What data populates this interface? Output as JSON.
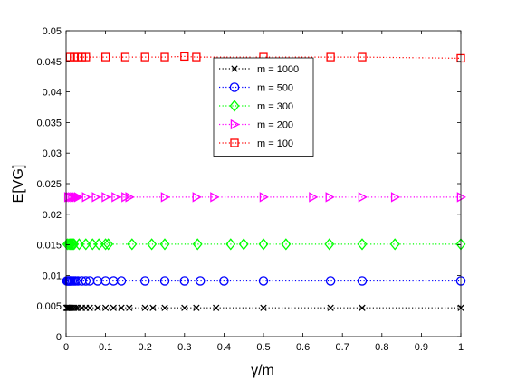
{
  "chart_data": {
    "type": "line",
    "title": "",
    "xlabel": "γ/m",
    "ylabel": "E[VG]",
    "xlim": [
      0,
      1
    ],
    "ylim": [
      0,
      0.05
    ],
    "xticks": [
      "0",
      "0.1",
      "0.2",
      "0.3",
      "0.4",
      "0.5",
      "0.6",
      "0.7",
      "0.8",
      "0.9",
      "1"
    ],
    "yticks": [
      "0",
      "0.005",
      "0.01",
      "0.015",
      "0.02",
      "0.025",
      "0.03",
      "0.035",
      "0.04",
      "0.045",
      "0.05"
    ],
    "grid": false,
    "legend_position": "top-center",
    "series": [
      {
        "name": "m = 1000",
        "color": "#000000",
        "marker": "x-mark",
        "x": [
          0.001,
          0.002,
          0.003,
          0.004,
          0.005,
          0.006,
          0.008,
          0.01,
          0.012,
          0.015,
          0.02,
          0.025,
          0.03,
          0.04,
          0.05,
          0.06,
          0.08,
          0.1,
          0.12,
          0.14,
          0.16,
          0.2,
          0.22,
          0.25,
          0.3,
          0.33,
          0.38,
          0.5,
          0.67,
          0.75,
          1.0
        ],
        "values": [
          0.0047,
          0.0047,
          0.0047,
          0.0047,
          0.0047,
          0.0047,
          0.0047,
          0.0047,
          0.0047,
          0.0047,
          0.0047,
          0.0047,
          0.0047,
          0.0047,
          0.0047,
          0.0047,
          0.0047,
          0.0047,
          0.0047,
          0.0047,
          0.0047,
          0.0047,
          0.0047,
          0.0047,
          0.0047,
          0.0047,
          0.0047,
          0.0047,
          0.0047,
          0.0047,
          0.0047
        ]
      },
      {
        "name": "m = 500",
        "color": "#0000ff",
        "marker": "circle",
        "x": [
          0.002,
          0.004,
          0.006,
          0.008,
          0.01,
          0.012,
          0.016,
          0.02,
          0.024,
          0.03,
          0.04,
          0.05,
          0.06,
          0.08,
          0.1,
          0.12,
          0.14,
          0.2,
          0.25,
          0.3,
          0.34,
          0.4,
          0.5,
          0.67,
          0.75,
          1.0
        ],
        "values": [
          0.0091,
          0.0091,
          0.0091,
          0.0091,
          0.0091,
          0.0091,
          0.0091,
          0.0091,
          0.0091,
          0.0091,
          0.0091,
          0.0091,
          0.0091,
          0.0091,
          0.0091,
          0.0091,
          0.0091,
          0.0091,
          0.0091,
          0.0091,
          0.0091,
          0.0091,
          0.0091,
          0.0091,
          0.0091,
          0.0091
        ]
      },
      {
        "name": "m = 300",
        "color": "#00ff00",
        "marker": "diamond",
        "x": [
          0.003,
          0.007,
          0.01,
          0.013,
          0.017,
          0.02,
          0.033,
          0.05,
          0.067,
          0.083,
          0.1,
          0.107,
          0.167,
          0.217,
          0.25,
          0.333,
          0.417,
          0.45,
          0.5,
          0.557,
          0.667,
          0.75,
          0.833,
          1.0
        ],
        "values": [
          0.0151,
          0.0151,
          0.0151,
          0.0151,
          0.0151,
          0.0151,
          0.0151,
          0.0151,
          0.0151,
          0.0151,
          0.0151,
          0.0151,
          0.0151,
          0.0151,
          0.0151,
          0.0151,
          0.0151,
          0.0151,
          0.0151,
          0.0151,
          0.0151,
          0.0151,
          0.0151,
          0.0151
        ]
      },
      {
        "name": "m = 200",
        "color": "#ff00ff",
        "marker": "triangle-right",
        "x": [
          0.005,
          0.01,
          0.015,
          0.02,
          0.025,
          0.03,
          0.05,
          0.075,
          0.1,
          0.125,
          0.15,
          0.16,
          0.25,
          0.33,
          0.375,
          0.5,
          0.625,
          0.667,
          0.75,
          0.833,
          1.0
        ],
        "values": [
          0.0228,
          0.0228,
          0.0228,
          0.0228,
          0.0228,
          0.0228,
          0.0228,
          0.0228,
          0.0228,
          0.0228,
          0.0228,
          0.0228,
          0.0228,
          0.0228,
          0.0228,
          0.0228,
          0.0228,
          0.0228,
          0.0228,
          0.0228,
          0.0228
        ]
      },
      {
        "name": "m = 100",
        "color": "#ff0000",
        "marker": "square",
        "x": [
          0.01,
          0.02,
          0.03,
          0.04,
          0.05,
          0.1,
          0.15,
          0.2,
          0.25,
          0.3,
          0.33,
          0.5,
          0.67,
          0.75,
          1.0
        ],
        "values": [
          0.0457,
          0.0457,
          0.0457,
          0.0457,
          0.0457,
          0.0457,
          0.0457,
          0.0457,
          0.0457,
          0.0458,
          0.0457,
          0.0457,
          0.0457,
          0.0457,
          0.0455
        ]
      }
    ]
  }
}
